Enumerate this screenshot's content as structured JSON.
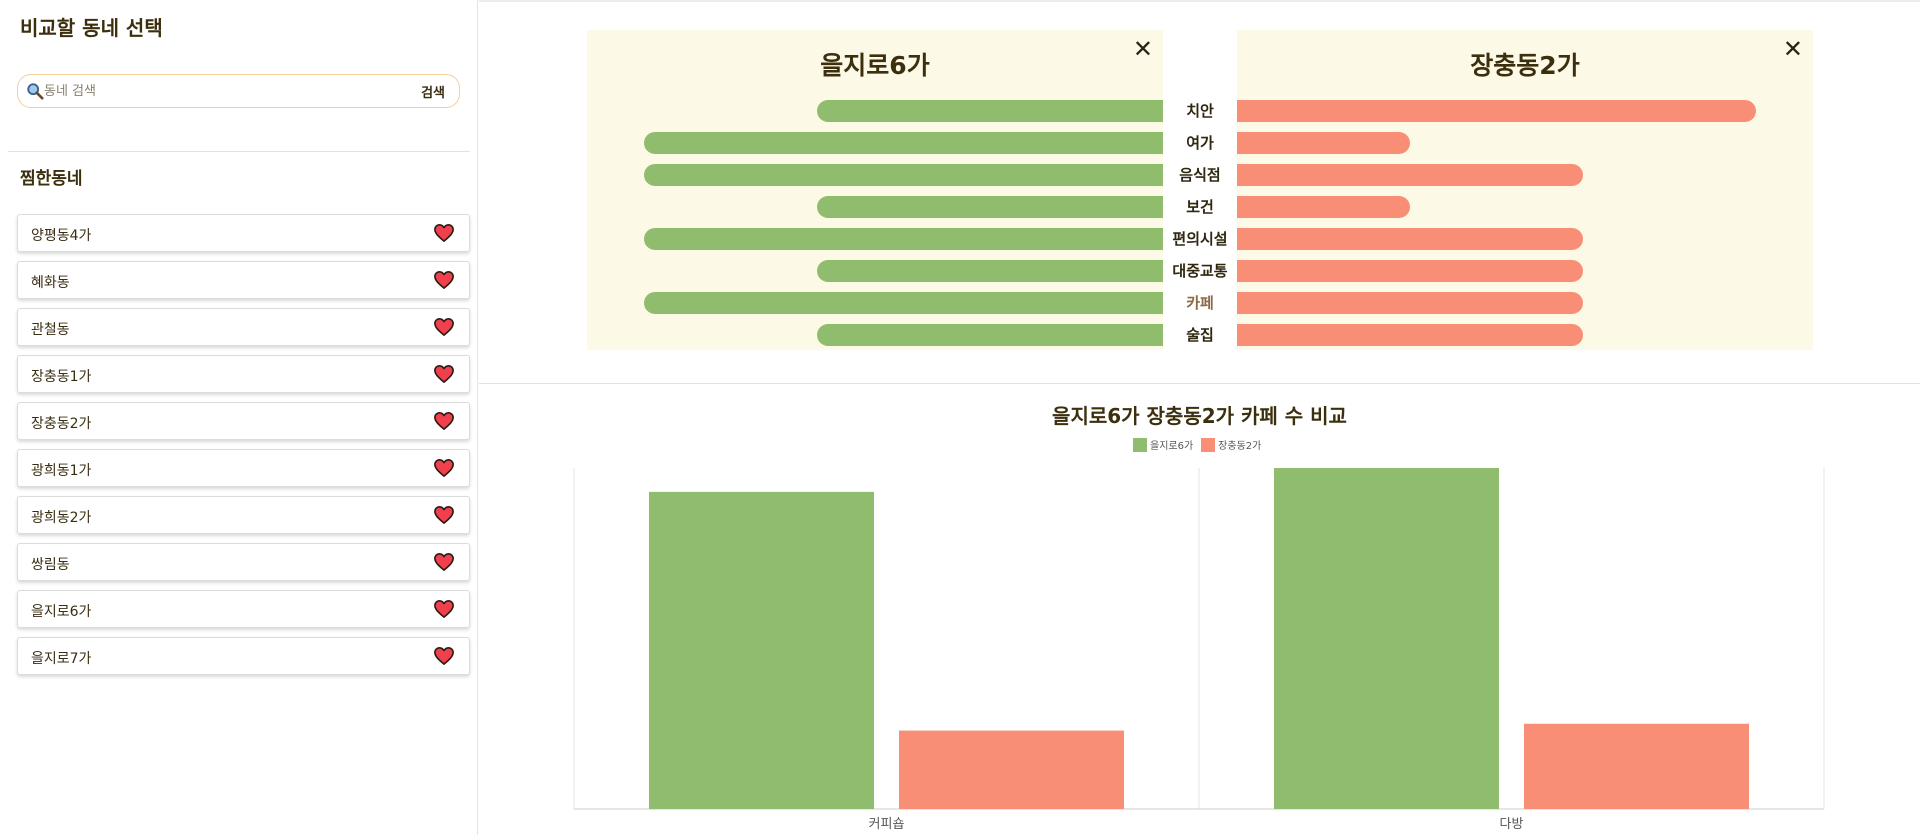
{
  "sidebar": {
    "title": "비교할 동네 선택",
    "search": {
      "placeholder": "동네 검색",
      "value": "",
      "button_label": "검색"
    },
    "favorites_title": "찜한동네",
    "favorites": [
      {
        "name": "양평동4가"
      },
      {
        "name": "혜화동"
      },
      {
        "name": "관철동"
      },
      {
        "name": "장충동1가"
      },
      {
        "name": "장충동2가"
      },
      {
        "name": "광희동1가"
      },
      {
        "name": "광희동2가"
      },
      {
        "name": "쌍림동"
      },
      {
        "name": "을지로6가"
      },
      {
        "name": "을지로7가"
      }
    ]
  },
  "comparison": {
    "left_name": "을지로6가",
    "right_name": "장충동2가",
    "close_symbol": "✕",
    "active_category": "카페",
    "categories": [
      {
        "label": "치안",
        "left": 2,
        "right": 3
      },
      {
        "label": "여가",
        "left": 3,
        "right": 1
      },
      {
        "label": "음식점",
        "left": 3,
        "right": 2
      },
      {
        "label": "보건",
        "left": 2,
        "right": 1
      },
      {
        "label": "편의시설",
        "left": 3,
        "right": 2
      },
      {
        "label": "대중교통",
        "left": 2,
        "right": 2
      },
      {
        "label": "카페",
        "left": 3,
        "right": 2
      },
      {
        "label": "술집",
        "left": 2,
        "right": 2
      }
    ],
    "scale_max": 3
  },
  "colors": {
    "green": "#8fbc6d",
    "red": "#f98e76",
    "panel": "#fdf9e7"
  },
  "chart_data": {
    "type": "bar",
    "title": "을지로6가 장충동2가 카페 수 비교",
    "categories": [
      "커피숍",
      "다방"
    ],
    "series": [
      {
        "name": "을지로6가",
        "values": [
          93,
          100
        ],
        "color": "#8fbc6d"
      },
      {
        "name": "장충동2가",
        "values": [
          23,
          25
        ],
        "color": "#f98e76"
      }
    ],
    "ylim": [
      0,
      100
    ],
    "legend": "top-center",
    "grid": false
  }
}
